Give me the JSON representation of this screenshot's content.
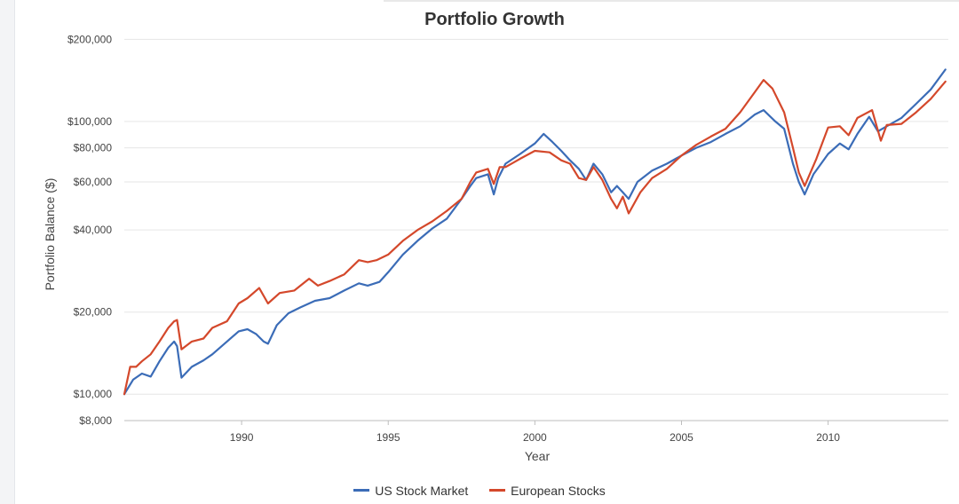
{
  "chart_data": {
    "type": "line",
    "title": "Portfolio Growth",
    "xlabel": "Year",
    "ylabel": "Portfolio Balance ($)",
    "yscale": "log",
    "xlim": [
      1986.0,
      2014.1
    ],
    "ylim": [
      8000,
      240000
    ],
    "x_ticks": [
      1990,
      1995,
      2000,
      2005,
      2010
    ],
    "y_ticks": [
      {
        "value": 8000,
        "label": "$8,000"
      },
      {
        "value": 10000,
        "label": "$10,000"
      },
      {
        "value": 20000,
        "label": "$20,000"
      },
      {
        "value": 40000,
        "label": "$40,000"
      },
      {
        "value": 60000,
        "label": "$60,000"
      },
      {
        "value": 80000,
        "label": "$80,000"
      },
      {
        "value": 100000,
        "label": "$100,000"
      },
      {
        "value": 200000,
        "label": "$200,000"
      }
    ],
    "grid": true,
    "legend_position": "bottom-center",
    "series": [
      {
        "name": "US Stock Market",
        "color": "#3b6cb7",
        "x": [
          1986.0,
          1986.3,
          1986.6,
          1986.9,
          1987.2,
          1987.5,
          1987.7,
          1987.8,
          1987.95,
          1988.3,
          1988.7,
          1989.0,
          1989.5,
          1989.9,
          1990.2,
          1990.5,
          1990.75,
          1990.9,
          1991.2,
          1991.6,
          1992.0,
          1992.5,
          1993.0,
          1993.5,
          1994.0,
          1994.3,
          1994.7,
          1995.0,
          1995.5,
          1996.0,
          1996.5,
          1997.0,
          1997.5,
          1997.8,
          1998.0,
          1998.4,
          1998.6,
          1998.75,
          1999.0,
          1999.5,
          2000.0,
          2000.3,
          2000.6,
          2000.9,
          2001.2,
          2001.5,
          2001.75,
          2002.0,
          2002.3,
          2002.6,
          2002.8,
          2003.0,
          2003.2,
          2003.5,
          2004.0,
          2004.5,
          2005.0,
          2005.5,
          2006.0,
          2006.5,
          2007.0,
          2007.5,
          2007.8,
          2008.2,
          2008.5,
          2008.8,
          2009.0,
          2009.2,
          2009.5,
          2010.0,
          2010.4,
          2010.7,
          2011.0,
          2011.4,
          2011.7,
          2012.0,
          2012.5,
          2013.0,
          2013.5,
          2014.0
        ],
        "values": [
          10000,
          11300,
          11900,
          11600,
          13200,
          14800,
          15600,
          15000,
          11500,
          12600,
          13300,
          14000,
          15600,
          17000,
          17300,
          16600,
          15600,
          15300,
          17900,
          19800,
          20800,
          22000,
          22500,
          24000,
          25500,
          25000,
          25800,
          28000,
          32500,
          36500,
          40500,
          44000,
          52000,
          58000,
          62000,
          64000,
          54000,
          62000,
          70000,
          76000,
          83000,
          90000,
          84000,
          78000,
          72000,
          67000,
          61000,
          70000,
          64000,
          55000,
          58000,
          55000,
          52000,
          60000,
          66000,
          70000,
          75000,
          80000,
          84000,
          90000,
          96000,
          106000,
          110000,
          100000,
          94000,
          70000,
          60000,
          54000,
          64000,
          76000,
          83000,
          79000,
          90000,
          104000,
          92000,
          96000,
          103000,
          116000,
          131000,
          155000
        ]
      },
      {
        "name": "European Stocks",
        "color": "#d4482b",
        "x": [
          1986.0,
          1986.2,
          1986.4,
          1986.6,
          1986.9,
          1987.2,
          1987.5,
          1987.7,
          1987.8,
          1987.95,
          1988.3,
          1988.7,
          1989.0,
          1989.5,
          1989.9,
          1990.2,
          1990.6,
          1990.9,
          1991.3,
          1991.8,
          1992.3,
          1992.6,
          1993.0,
          1993.5,
          1994.0,
          1994.3,
          1994.6,
          1995.0,
          1995.5,
          1996.0,
          1996.5,
          1997.0,
          1997.5,
          1997.8,
          1998.0,
          1998.4,
          1998.6,
          1998.8,
          1999.0,
          1999.5,
          2000.0,
          2000.5,
          2000.9,
          2001.2,
          2001.5,
          2001.75,
          2002.0,
          2002.3,
          2002.6,
          2002.8,
          2003.0,
          2003.2,
          2003.6,
          2004.0,
          2004.5,
          2005.0,
          2005.5,
          2006.0,
          2006.5,
          2007.0,
          2007.5,
          2007.8,
          2008.1,
          2008.5,
          2008.8,
          2009.0,
          2009.2,
          2009.6,
          2010.0,
          2010.4,
          2010.7,
          2011.0,
          2011.5,
          2011.8,
          2012.0,
          2012.5,
          2013.0,
          2013.5,
          2014.0
        ],
        "values": [
          10000,
          12600,
          12600,
          13200,
          14000,
          15600,
          17500,
          18500,
          18700,
          14600,
          15600,
          16000,
          17500,
          18500,
          21500,
          22500,
          24500,
          21500,
          23500,
          24000,
          26500,
          25000,
          26000,
          27500,
          31000,
          30500,
          31000,
          32500,
          36500,
          40000,
          43000,
          47000,
          52000,
          60000,
          65000,
          67000,
          59000,
          68000,
          68000,
          73000,
          78000,
          77000,
          72000,
          70000,
          62000,
          61000,
          68000,
          61000,
          52000,
          48000,
          53000,
          46000,
          55000,
          62000,
          67000,
          75000,
          82000,
          88000,
          94000,
          108000,
          128000,
          142000,
          132000,
          108000,
          80000,
          65000,
          58000,
          73000,
          95000,
          96000,
          89000,
          103000,
          110000,
          85000,
          97000,
          98000,
          108000,
          121000,
          140000
        ]
      }
    ]
  }
}
